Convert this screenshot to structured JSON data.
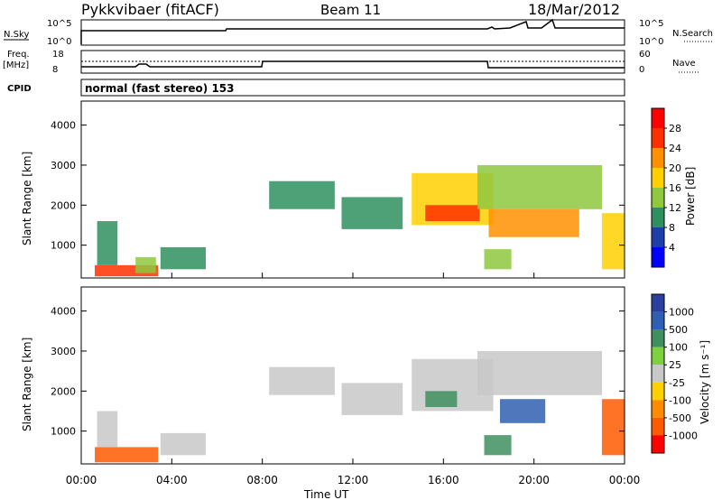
{
  "header": {
    "station": "Pykkvibaer (fitACF)",
    "beam": "Beam 11",
    "date": "18/Mar/2012"
  },
  "top_panel": {
    "left_label": "N.Sky",
    "left_ticks": [
      "10^5",
      "10^0"
    ],
    "right_label": "N.Search",
    "right_ticks": [
      "10^5",
      "10^0"
    ]
  },
  "freq_panel": {
    "left_label_1": "Freq.",
    "left_label_2": "[MHz]",
    "left_ticks": [
      "18",
      "8"
    ],
    "right_label": "Nave",
    "right_ticks": [
      "60",
      "0"
    ]
  },
  "cpid": {
    "label": "CPID",
    "text": "normal (fast stereo) 153"
  },
  "x_axis": {
    "label": "Time UT",
    "ticks": [
      "00:00",
      "04:00",
      "08:00",
      "12:00",
      "16:00",
      "20:00",
      "00:00"
    ]
  },
  "colors": {
    "power": [
      "#0000ff",
      "#1f3fa8",
      "#2f8f5f",
      "#8fc83f",
      "#ffd000",
      "#ff9000",
      "#ff3000",
      "#ff0000"
    ],
    "velocity": [
      "#2a3fa0",
      "#2f5fb0",
      "#3f8f5f",
      "#7fd03f",
      "#c8c8c8",
      "#ffd000",
      "#ff8c00",
      "#ff5a00",
      "#ff0000"
    ]
  },
  "chart_data": [
    {
      "type": "heatmap",
      "name": "power",
      "ylabel": "Slant Range [km]",
      "ylim": [
        180,
        4600
      ],
      "xlim_hours": [
        0,
        24
      ],
      "yticks": [
        "1000",
        "2000",
        "3000",
        "4000"
      ],
      "colorbar_label": "Power [dB]",
      "colorbar_ticks": [
        "4",
        "8",
        "12",
        "16",
        "20",
        "24",
        "28"
      ],
      "patches": [
        {
          "t0": 0.6,
          "t1": 3.4,
          "r0": 220,
          "r1": 500,
          "v": 26
        },
        {
          "t0": 0.7,
          "t1": 1.6,
          "r0": 500,
          "r1": 1600,
          "v": 10
        },
        {
          "t0": 2.4,
          "t1": 3.3,
          "r0": 300,
          "r1": 700,
          "v": 14
        },
        {
          "t0": 3.5,
          "t1": 5.5,
          "r0": 400,
          "r1": 950,
          "v": 8
        },
        {
          "t0": 8.3,
          "t1": 11.2,
          "r0": 1900,
          "r1": 2600,
          "v": 8
        },
        {
          "t0": 11.5,
          "t1": 14.2,
          "r0": 1400,
          "r1": 2200,
          "v": 9
        },
        {
          "t0": 14.6,
          "t1": 18.2,
          "r0": 1500,
          "r1": 2800,
          "v": 18
        },
        {
          "t0": 15.2,
          "t1": 17.6,
          "r0": 1600,
          "r1": 2000,
          "v": 24
        },
        {
          "t0": 17.5,
          "t1": 23.0,
          "r0": 1900,
          "r1": 3000,
          "v": 14
        },
        {
          "t0": 18.0,
          "t1": 22.0,
          "r0": 1200,
          "r1": 1900,
          "v": 22
        },
        {
          "t0": 23.0,
          "t1": 24.0,
          "r0": 400,
          "r1": 1800,
          "v": 18
        },
        {
          "t0": 17.8,
          "t1": 19.0,
          "r0": 400,
          "r1": 900,
          "v": 12
        }
      ]
    },
    {
      "type": "heatmap",
      "name": "velocity",
      "ylabel": "Slant Range [km]",
      "ylim": [
        180,
        4600
      ],
      "xlim_hours": [
        0,
        24
      ],
      "yticks": [
        "1000",
        "2000",
        "3000",
        "4000"
      ],
      "colorbar_label": "Velocity [m s⁻¹]",
      "colorbar_ticks": [
        "1000",
        "500",
        "100",
        "25",
        "-25",
        "-100",
        "-500",
        "-1000"
      ],
      "patches": [
        {
          "t0": 0.6,
          "t1": 3.4,
          "r0": 220,
          "r1": 600,
          "v": -300
        },
        {
          "t0": 0.7,
          "t1": 1.6,
          "r0": 600,
          "r1": 1500,
          "v": 0
        },
        {
          "t0": 3.5,
          "t1": 5.5,
          "r0": 400,
          "r1": 950,
          "v": 0
        },
        {
          "t0": 8.3,
          "t1": 11.2,
          "r0": 1900,
          "r1": 2600,
          "v": 0
        },
        {
          "t0": 11.5,
          "t1": 14.2,
          "r0": 1400,
          "r1": 2200,
          "v": 0
        },
        {
          "t0": 14.6,
          "t1": 18.2,
          "r0": 1500,
          "r1": 2800,
          "v": 0
        },
        {
          "t0": 15.2,
          "t1": 16.6,
          "r0": 1600,
          "r1": 2000,
          "v": 200
        },
        {
          "t0": 17.5,
          "t1": 23.0,
          "r0": 1900,
          "r1": 3000,
          "v": 0
        },
        {
          "t0": 18.5,
          "t1": 20.5,
          "r0": 1200,
          "r1": 1800,
          "v": 300
        },
        {
          "t0": 23.0,
          "t1": 24.0,
          "r0": 400,
          "r1": 1800,
          "v": -300
        },
        {
          "t0": 17.8,
          "t1": 19.0,
          "r0": 400,
          "r1": 900,
          "v": 150
        }
      ]
    }
  ]
}
